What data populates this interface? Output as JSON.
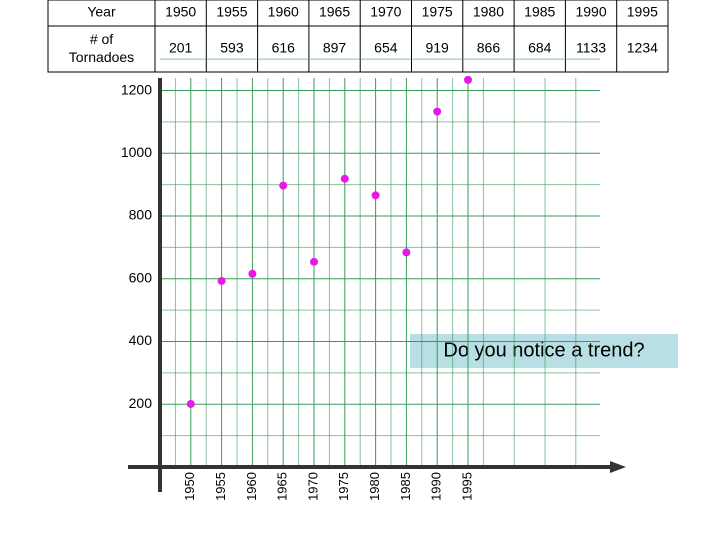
{
  "chart_data": {
    "type": "scatter",
    "row_headers": [
      "Year",
      "# of Tornadoes"
    ],
    "x": [
      1950,
      1955,
      1960,
      1965,
      1970,
      1975,
      1980,
      1985,
      1990,
      1995
    ],
    "values": [
      201,
      593,
      616,
      897,
      654,
      919,
      866,
      684,
      1133,
      1234
    ],
    "color": "#e619e6",
    "xlim": [
      1945,
      2020
    ],
    "ylim": [
      0,
      1240
    ],
    "xticks": [
      1950,
      1955,
      1960,
      1965,
      1970,
      1975,
      1980,
      1985,
      1990,
      1995
    ],
    "yticks": [
      200,
      400,
      600,
      800,
      1000,
      1200
    ],
    "grid": true,
    "grid_color": "#3a9a5a",
    "annotation": "Do you notice a trend?"
  }
}
